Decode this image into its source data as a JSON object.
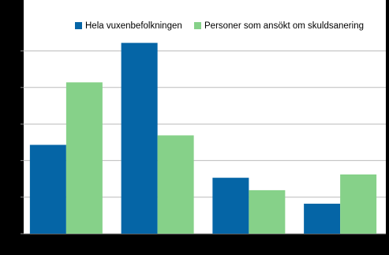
{
  "chart_data": {
    "type": "bar",
    "categories": [
      null,
      null,
      null,
      null
    ],
    "series": [
      {
        "name": "Hela vuxenbefolkningen",
        "color": "#0565a6",
        "values": [
          2.43,
          5.22,
          1.53,
          0.82
        ]
      },
      {
        "name": "Personer som ansökt om skuldsanering",
        "color": "#86d189",
        "values": [
          4.14,
          2.69,
          1.19,
          1.62
        ]
      }
    ],
    "ylim": [
      0,
      6.35
    ],
    "yticks": [
      0,
      1,
      2,
      3,
      4,
      5
    ],
    "grid": true,
    "legend": "top-right"
  }
}
